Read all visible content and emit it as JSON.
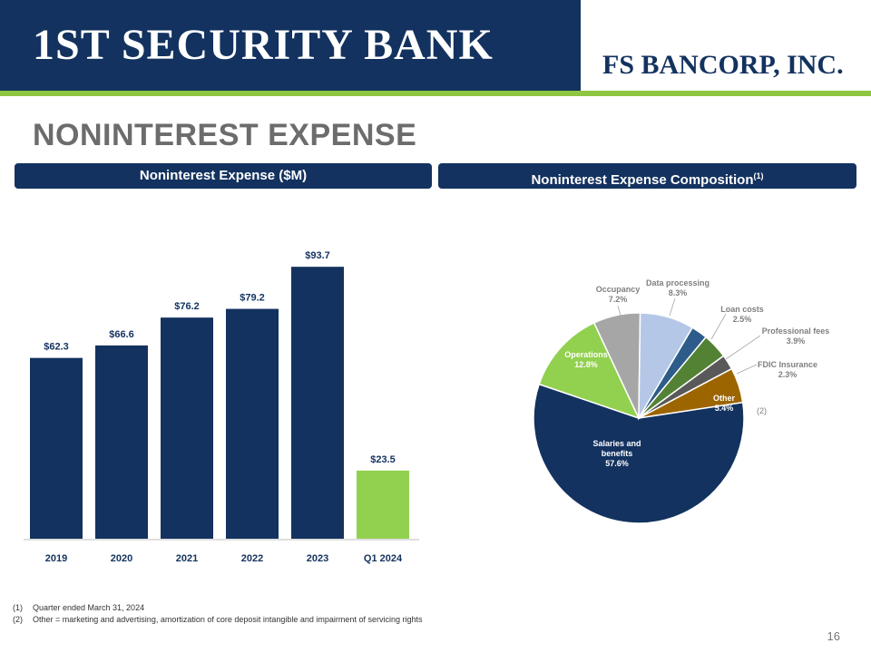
{
  "header": {
    "left_logo": "1ST SECURITY BANK",
    "right_logo": "FS BANCORP, INC."
  },
  "title": "NONINTEREST EXPENSE",
  "left_panel": {
    "title": "Noninterest Expense ($M)"
  },
  "right_panel": {
    "title": "Noninterest Expense Composition",
    "title_sup": "(1)"
  },
  "chart_data": [
    {
      "type": "bar",
      "categories": [
        "2019",
        "2020",
        "2021",
        "2022",
        "2023",
        "Q1 2024"
      ],
      "values": [
        62.3,
        66.6,
        76.2,
        79.2,
        93.7,
        23.5
      ],
      "labels": [
        "$62.3",
        "$66.6",
        "$76.2",
        "$79.2",
        "$93.7",
        "$23.5"
      ],
      "colors": [
        "#13325f",
        "#13325f",
        "#13325f",
        "#13325f",
        "#13325f",
        "#92d050"
      ],
      "ylim": [
        0,
        100
      ],
      "grid": false
    },
    {
      "type": "pie",
      "slices": [
        {
          "label": "Salaries and benefits",
          "value": 57.6,
          "display": "57.6%",
          "color": "#13325f"
        },
        {
          "label": "Operations",
          "value": 12.8,
          "display": "12.8%",
          "color": "#92d050"
        },
        {
          "label": "Occupancy",
          "value": 7.2,
          "display": "7.2%",
          "color": "#a6a6a6"
        },
        {
          "label": "Data processing",
          "value": 8.3,
          "display": "8.3%",
          "color": "#b4c7e7"
        },
        {
          "label": "Loan costs",
          "value": 2.5,
          "display": "2.5%",
          "color": "#2e5c8a"
        },
        {
          "label": "Professional fees",
          "value": 3.9,
          "display": "3.9%",
          "color": "#548235"
        },
        {
          "label": "FDIC Insurance",
          "value": 2.3,
          "display": "2.3%",
          "color": "#595959"
        },
        {
          "label": "Other",
          "value": 5.4,
          "display": "5.4%",
          "color": "#9c6500"
        }
      ],
      "other_note": "(2)"
    }
  ],
  "footnotes": [
    {
      "num": "(1)",
      "text": "Quarter ended March 31, 2024"
    },
    {
      "num": "(2)",
      "text": "Other = marketing and advertising, amortization of core deposit intangible and impairment of servicing rights"
    }
  ],
  "page_number": "16"
}
